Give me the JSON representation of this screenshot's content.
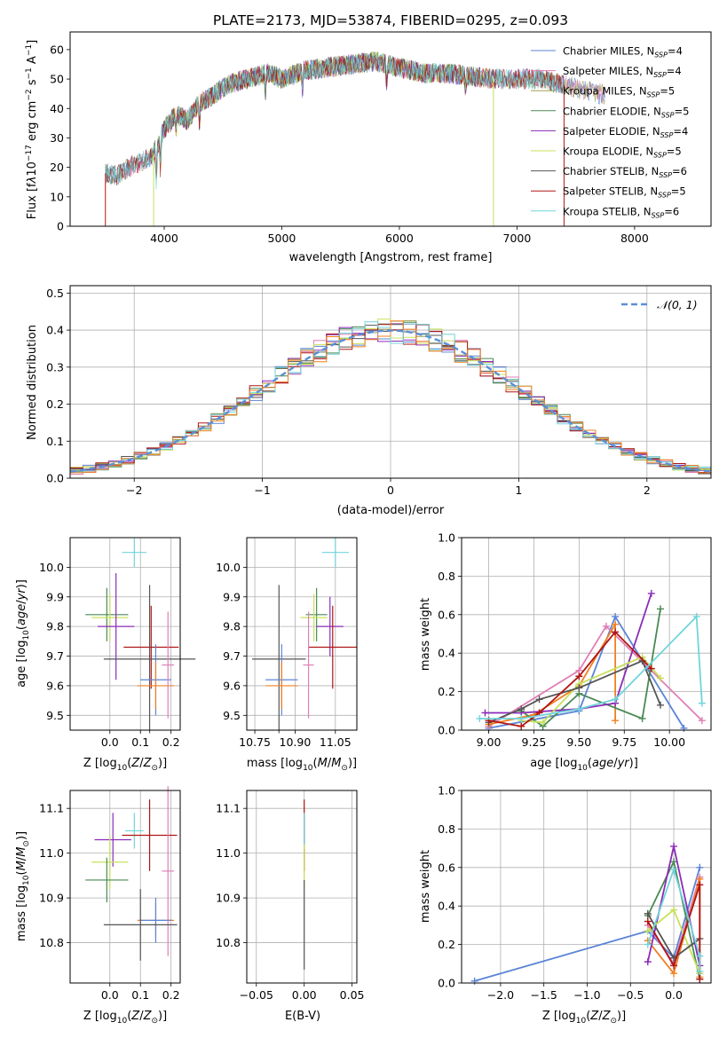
{
  "figure": {
    "title": "PLATE=2173, MJD=53874, FIBERID=0295, z=0.093"
  },
  "colors": {
    "chabrier_miles": "#5b84d6",
    "salpeter_miles": "#e07fb6",
    "kroupa_miles": "#a0a050",
    "chabrier_elodie": "#4a8a55",
    "salpeter_elodie": "#8a2bb8",
    "kroupa_elodie": "#c8e05a",
    "chabrier_stelib": "#555555",
    "salpeter_stelib": "#b01515",
    "kroupa_stelib": "#70d4dc",
    "gaussian": "#5b8fd6",
    "orange": "#f08020",
    "grid": "#b0b0b0"
  },
  "chart_data": [
    {
      "id": "spectrum",
      "type": "line",
      "xlabel": "wavelength [Angstrom, rest frame]",
      "ylabel": "Flux [f_λ 10^-17 erg cm^-2 s^-1 A^-1]",
      "xlim": [
        3200,
        8650
      ],
      "ylim": [
        0,
        66
      ],
      "xticks": [
        4000,
        5000,
        6000,
        7000,
        8000
      ],
      "yticks": [
        0,
        10,
        20,
        30,
        40,
        50,
        60
      ],
      "grid": false,
      "legend_position": "top-right",
      "continuum_x": [
        3500,
        3600,
        3700,
        3800,
        3900,
        4000,
        4100,
        4200,
        4300,
        4400,
        4500,
        4600,
        4700,
        4800,
        4900,
        5000,
        5200,
        5400,
        5600,
        5800,
        6000,
        6200,
        6400,
        6600,
        6800,
        7000,
        7200,
        7400,
        7600,
        7700
      ],
      "continuum_y": [
        18,
        17,
        20,
        22,
        24,
        33,
        38,
        36,
        42,
        44,
        47,
        49,
        50,
        51,
        52,
        50,
        53,
        54,
        55,
        56,
        54,
        52,
        52,
        51,
        50,
        50,
        50,
        48,
        46,
        45
      ],
      "series": [
        {
          "name": "Chabrier MILES, N_SSP=4",
          "color_key": "chabrier_miles",
          "xrange": [
            3500,
            7750
          ]
        },
        {
          "name": "Salpeter MILES, N_SSP=4",
          "color_key": "salpeter_miles",
          "xrange": [
            3500,
            7750
          ]
        },
        {
          "name": "Kroupa MILES, N_SSP=5",
          "color_key": "kroupa_miles",
          "xrange": [
            3500,
            7750
          ]
        },
        {
          "name": "Chabrier ELODIE, N_SSP=5",
          "color_key": "chabrier_elodie",
          "xrange": [
            3900,
            6800
          ]
        },
        {
          "name": "Salpeter ELODIE, N_SSP=4",
          "color_key": "salpeter_elodie",
          "xrange": [
            3900,
            6800
          ]
        },
        {
          "name": "Kroupa ELODIE, N_SSP=5",
          "color_key": "kroupa_elodie",
          "xrange": [
            3900,
            6800
          ]
        },
        {
          "name": "Chabrier STELIB, N_SSP=6",
          "color_key": "chabrier_stelib",
          "xrange": [
            3500,
            7400
          ]
        },
        {
          "name": "Salpeter STELIB, N_SSP=5",
          "color_key": "salpeter_stelib",
          "xrange": [
            3500,
            7400
          ]
        },
        {
          "name": "Kroupa STELIB, N_SSP=6",
          "color_key": "kroupa_stelib",
          "xrange": [
            3500,
            7400
          ]
        }
      ]
    },
    {
      "id": "residuals",
      "type": "line",
      "xlabel": "(data-model)/error",
      "ylabel": "Normed distribution",
      "xlim": [
        -2.5,
        2.5
      ],
      "ylim": [
        0,
        0.52
      ],
      "xticks": [
        -2,
        -1,
        0,
        1,
        2
      ],
      "yticks": [
        0.0,
        0.1,
        0.2,
        0.3,
        0.4,
        0.5
      ],
      "grid": true,
      "legend_position": "top-right",
      "bin_width": 0.1,
      "gaussian_label": "𝒩(0, 1)",
      "histogram_colors": [
        "chabrier_miles",
        "salpeter_miles",
        "kroupa_miles",
        "chabrier_elodie",
        "salpeter_elodie",
        "kroupa_elodie",
        "chabrier_stelib",
        "salpeter_stelib",
        "kroupa_stelib",
        "orange"
      ]
    },
    {
      "id": "age_vs_z",
      "type": "scatter",
      "xlabel": "Z [log10(Z/Z⊙)]",
      "ylabel": "age [log10(age/yr)]",
      "xlim": [
        -0.13,
        0.23
      ],
      "ylim": [
        9.45,
        10.1
      ],
      "xticks": [
        0.0,
        0.1,
        0.2
      ],
      "xtick_labels": [
        "0.0",
        "0.1",
        "0.2"
      ],
      "yticks": [
        9.5,
        9.6,
        9.7,
        9.8,
        9.9,
        10.0
      ],
      "grid": true,
      "points": [
        {
          "color_key": "kroupa_stelib",
          "x": 0.08,
          "xerr": 0.04,
          "y": 10.05,
          "yerr": 0.05
        },
        {
          "color_key": "chabrier_elodie",
          "x": -0.01,
          "xerr": 0.07,
          "y": 9.84,
          "yerr": 0.09
        },
        {
          "color_key": "kroupa_elodie",
          "x": 0.0,
          "xerr": 0.06,
          "y": 9.83,
          "yerr": 0.08
        },
        {
          "color_key": "salpeter_elodie",
          "x": 0.02,
          "xerr": 0.06,
          "y": 9.8,
          "yerr": 0.18
        },
        {
          "color_key": "salpeter_stelib",
          "x": 0.135,
          "xerr": 0.09,
          "y": 9.73,
          "yerr": 0.14
        },
        {
          "color_key": "chabrier_stelib",
          "x": 0.13,
          "xerr": 0.15,
          "y": 9.69,
          "yerr": 0.25
        },
        {
          "color_key": "chabrier_miles",
          "x": 0.15,
          "xerr": 0.05,
          "y": 9.62,
          "yerr": 0.12
        },
        {
          "color_key": "orange",
          "x": 0.15,
          "xerr": 0.06,
          "y": 9.6,
          "yerr": 0.08
        },
        {
          "color_key": "salpeter_miles",
          "x": 0.19,
          "xerr": 0.02,
          "y": 9.67,
          "yerr": 0.18
        }
      ]
    },
    {
      "id": "age_vs_mass",
      "type": "scatter",
      "xlabel": "mass [log10(M/M⊙)]",
      "ylabel": "",
      "xlim": [
        10.72,
        11.13
      ],
      "ylim": [
        9.45,
        10.1
      ],
      "xticks": [
        10.75,
        10.9,
        11.05
      ],
      "xtick_labels": [
        "10.75",
        "10.90",
        "11.05"
      ],
      "yticks": [
        9.5,
        9.6,
        9.7,
        9.8,
        9.9,
        10.0
      ],
      "grid": true,
      "points": [
        {
          "color_key": "kroupa_stelib",
          "x": 11.05,
          "xerr": 0.05,
          "y": 10.05,
          "yerr": 0.05
        },
        {
          "color_key": "chabrier_elodie",
          "x": 10.98,
          "xerr": 0.04,
          "y": 9.84,
          "yerr": 0.09
        },
        {
          "color_key": "kroupa_elodie",
          "x": 10.97,
          "xerr": 0.05,
          "y": 9.83,
          "yerr": 0.08
        },
        {
          "color_key": "salpeter_elodie",
          "x": 11.03,
          "xerr": 0.05,
          "y": 9.8,
          "yerr": 0.1
        },
        {
          "color_key": "salpeter_stelib",
          "x": 11.04,
          "xerr": 0.09,
          "y": 9.73,
          "yerr": 0.14
        },
        {
          "color_key": "chabrier_stelib",
          "x": 10.84,
          "xerr": 0.1,
          "y": 9.69,
          "yerr": 0.25
        },
        {
          "color_key": "chabrier_miles",
          "x": 10.85,
          "xerr": 0.06,
          "y": 9.62,
          "yerr": 0.12
        },
        {
          "color_key": "orange",
          "x": 10.85,
          "xerr": 0.06,
          "y": 9.6,
          "yerr": 0.08
        },
        {
          "color_key": "salpeter_miles",
          "x": 10.95,
          "xerr": 0.02,
          "y": 9.67,
          "yerr": 0.18
        }
      ]
    },
    {
      "id": "weight_vs_age",
      "type": "line",
      "xlabel": "age [log10(age/yr)]",
      "ylabel": "mass weight",
      "xlim": [
        8.85,
        10.23
      ],
      "ylim": [
        0,
        1.0
      ],
      "xticks": [
        9.0,
        9.25,
        9.5,
        9.75,
        10.0
      ],
      "xtick_labels": [
        "9.00",
        "9.25",
        "9.50",
        "9.75",
        "10.00"
      ],
      "yticks": [
        0.0,
        0.2,
        0.4,
        0.6,
        0.8,
        1.0
      ],
      "grid": true,
      "series": [
        {
          "color_key": "chabrier_miles",
          "x": [
            9.0,
            9.5,
            9.7,
            10.08
          ],
          "y": [
            0.01,
            0.1,
            0.59,
            0.01
          ]
        },
        {
          "color_key": "salpeter_miles",
          "x": [
            9.0,
            9.5,
            9.65,
            10.18
          ],
          "y": [
            0.02,
            0.31,
            0.54,
            0.05
          ]
        },
        {
          "color_key": "orange",
          "x": [
            9.0,
            9.25,
            9.5,
            9.7,
            9.7
          ],
          "y": [
            0.03,
            0.08,
            0.23,
            0.55,
            0.05
          ]
        },
        {
          "color_key": "chabrier_elodie",
          "x": [
            9.18,
            9.3,
            9.5,
            9.85,
            9.95
          ],
          "y": [
            0.1,
            0.02,
            0.19,
            0.06,
            0.63
          ]
        },
        {
          "color_key": "salpeter_elodie",
          "x": [
            8.98,
            9.18,
            9.5,
            9.7,
            9.9
          ],
          "y": [
            0.09,
            0.09,
            0.11,
            0.14,
            0.71
          ]
        },
        {
          "color_key": "kroupa_elodie",
          "x": [
            9.18,
            9.3,
            9.5,
            9.85,
            9.95
          ],
          "y": [
            0.05,
            0.04,
            0.24,
            0.38,
            0.27
          ]
        },
        {
          "color_key": "chabrier_stelib",
          "x": [
            9.0,
            9.18,
            9.28,
            9.5,
            9.85,
            9.95
          ],
          "y": [
            0.04,
            0.11,
            0.16,
            0.22,
            0.36,
            0.13
          ]
        },
        {
          "color_key": "salpeter_stelib",
          "x": [
            9.0,
            9.18,
            9.28,
            9.5,
            9.7,
            9.9
          ],
          "y": [
            0.05,
            0.02,
            0.09,
            0.28,
            0.51,
            0.32
          ]
        },
        {
          "color_key": "kroupa_stelib",
          "x": [
            8.95,
            9.18,
            9.5,
            9.7,
            10.15,
            10.18
          ],
          "y": [
            0.06,
            0.06,
            0.11,
            0.16,
            0.59,
            0.14
          ]
        }
      ]
    },
    {
      "id": "mass_vs_z",
      "type": "scatter",
      "xlabel": "Z [log10(Z/Z⊙)]",
      "ylabel": "mass [log10(M/M⊙)]",
      "xlim": [
        -0.13,
        0.23
      ],
      "ylim": [
        10.71,
        11.14
      ],
      "xticks": [
        0.0,
        0.1,
        0.2
      ],
      "xtick_labels": [
        "0.0",
        "0.1",
        "0.2"
      ],
      "yticks": [
        10.8,
        10.9,
        11.0,
        11.1
      ],
      "grid": true,
      "points": [
        {
          "color_key": "kroupa_stelib",
          "x": 0.08,
          "xerr": 0.03,
          "y": 11.05,
          "yerr": 0.04
        },
        {
          "color_key": "salpeter_stelib",
          "x": 0.13,
          "xerr": 0.09,
          "y": 11.04,
          "yerr": 0.08
        },
        {
          "color_key": "salpeter_elodie",
          "x": 0.01,
          "xerr": 0.06,
          "y": 11.03,
          "yerr": 0.06
        },
        {
          "color_key": "kroupa_elodie",
          "x": 0.0,
          "xerr": 0.06,
          "y": 10.98,
          "yerr": 0.06
        },
        {
          "color_key": "chabrier_elodie",
          "x": -0.01,
          "xerr": 0.07,
          "y": 10.94,
          "yerr": 0.05
        },
        {
          "color_key": "salpeter_miles",
          "x": 0.19,
          "xerr": 0.02,
          "y": 10.96,
          "yerr": 0.19
        },
        {
          "color_key": "orange",
          "x": 0.15,
          "xerr": 0.06,
          "y": 10.85,
          "yerr": 0.04
        },
        {
          "color_key": "chabrier_miles",
          "x": 0.15,
          "xerr": 0.05,
          "y": 10.85,
          "yerr": 0.05
        },
        {
          "color_key": "chabrier_stelib",
          "x": 0.1,
          "xerr": 0.12,
          "y": 10.84,
          "yerr": 0.08
        }
      ]
    },
    {
      "id": "mass_vs_ebv",
      "type": "scatter",
      "xlabel": "E(B-V)",
      "ylabel": "",
      "xlim": [
        -0.06,
        0.055
      ],
      "ylim": [
        10.71,
        11.14
      ],
      "xticks": [
        -0.05,
        0.0,
        0.05
      ],
      "xtick_labels": [
        "−0.05",
        "0.00",
        "0.05"
      ],
      "yticks": [
        10.8,
        10.9,
        11.0,
        11.1
      ],
      "grid": true,
      "points": [
        {
          "color_key": "salpeter_stelib",
          "x": 0.0,
          "xerr": 0,
          "y": 11.04,
          "yerr": 0.08
        },
        {
          "color_key": "kroupa_stelib",
          "x": 0.0,
          "xerr": 0,
          "y": 11.05,
          "yerr": 0.04
        },
        {
          "color_key": "kroupa_elodie",
          "x": 0.0,
          "xerr": 0,
          "y": 10.97,
          "yerr": 0.05
        },
        {
          "color_key": "chabrier_stelib",
          "x": 0.0,
          "xerr": 0,
          "y": 10.84,
          "yerr": 0.1
        }
      ]
    },
    {
      "id": "weight_vs_z",
      "type": "line",
      "xlabel": "Z [log10(Z/Z⊙)]",
      "ylabel": "mass weight",
      "xlim": [
        -2.45,
        0.43
      ],
      "ylim": [
        0,
        1.0
      ],
      "xticks": [
        -2.0,
        -1.5,
        -1.0,
        -0.5,
        0.0
      ],
      "xtick_labels": [
        "−2.0",
        "−1.5",
        "−1.0",
        "−0.5",
        "0.0"
      ],
      "yticks": [
        0.0,
        0.2,
        0.4,
        0.6,
        0.8,
        1.0
      ],
      "grid": true,
      "series": [
        {
          "color_key": "chabrier_miles",
          "x": [
            -2.3,
            -0.3,
            0.0,
            0.3
          ],
          "y": [
            0.01,
            0.27,
            0.13,
            0.6
          ]
        },
        {
          "color_key": "salpeter_miles",
          "x": [
            -0.3,
            0.0,
            0.3,
            0.3
          ],
          "y": [
            0.3,
            0.1,
            0.55,
            0.05
          ]
        },
        {
          "color_key": "orange",
          "x": [
            -0.3,
            0.0,
            0.3,
            0.3
          ],
          "y": [
            0.22,
            0.05,
            0.54,
            0.03
          ]
        },
        {
          "color_key": "chabrier_elodie",
          "x": [
            -0.3,
            0.0,
            0.3
          ],
          "y": [
            0.35,
            0.63,
            0.02
          ]
        },
        {
          "color_key": "salpeter_elodie",
          "x": [
            -0.3,
            0.0,
            0.3
          ],
          "y": [
            0.11,
            0.71,
            0.09
          ]
        },
        {
          "color_key": "kroupa_elodie",
          "x": [
            -0.3,
            0.0,
            0.3
          ],
          "y": [
            0.27,
            0.38,
            0.05
          ]
        },
        {
          "color_key": "chabrier_stelib",
          "x": [
            -0.3,
            0.0,
            0.3
          ],
          "y": [
            0.36,
            0.13,
            0.23
          ]
        },
        {
          "color_key": "salpeter_stelib",
          "x": [
            -0.3,
            0.0,
            0.3,
            0.3
          ],
          "y": [
            0.32,
            0.09,
            0.51,
            0.02
          ]
        },
        {
          "color_key": "kroupa_stelib",
          "x": [
            -0.3,
            0.0,
            0.3,
            0.3
          ],
          "y": [
            0.2,
            0.59,
            0.14,
            0.06
          ]
        }
      ]
    }
  ]
}
